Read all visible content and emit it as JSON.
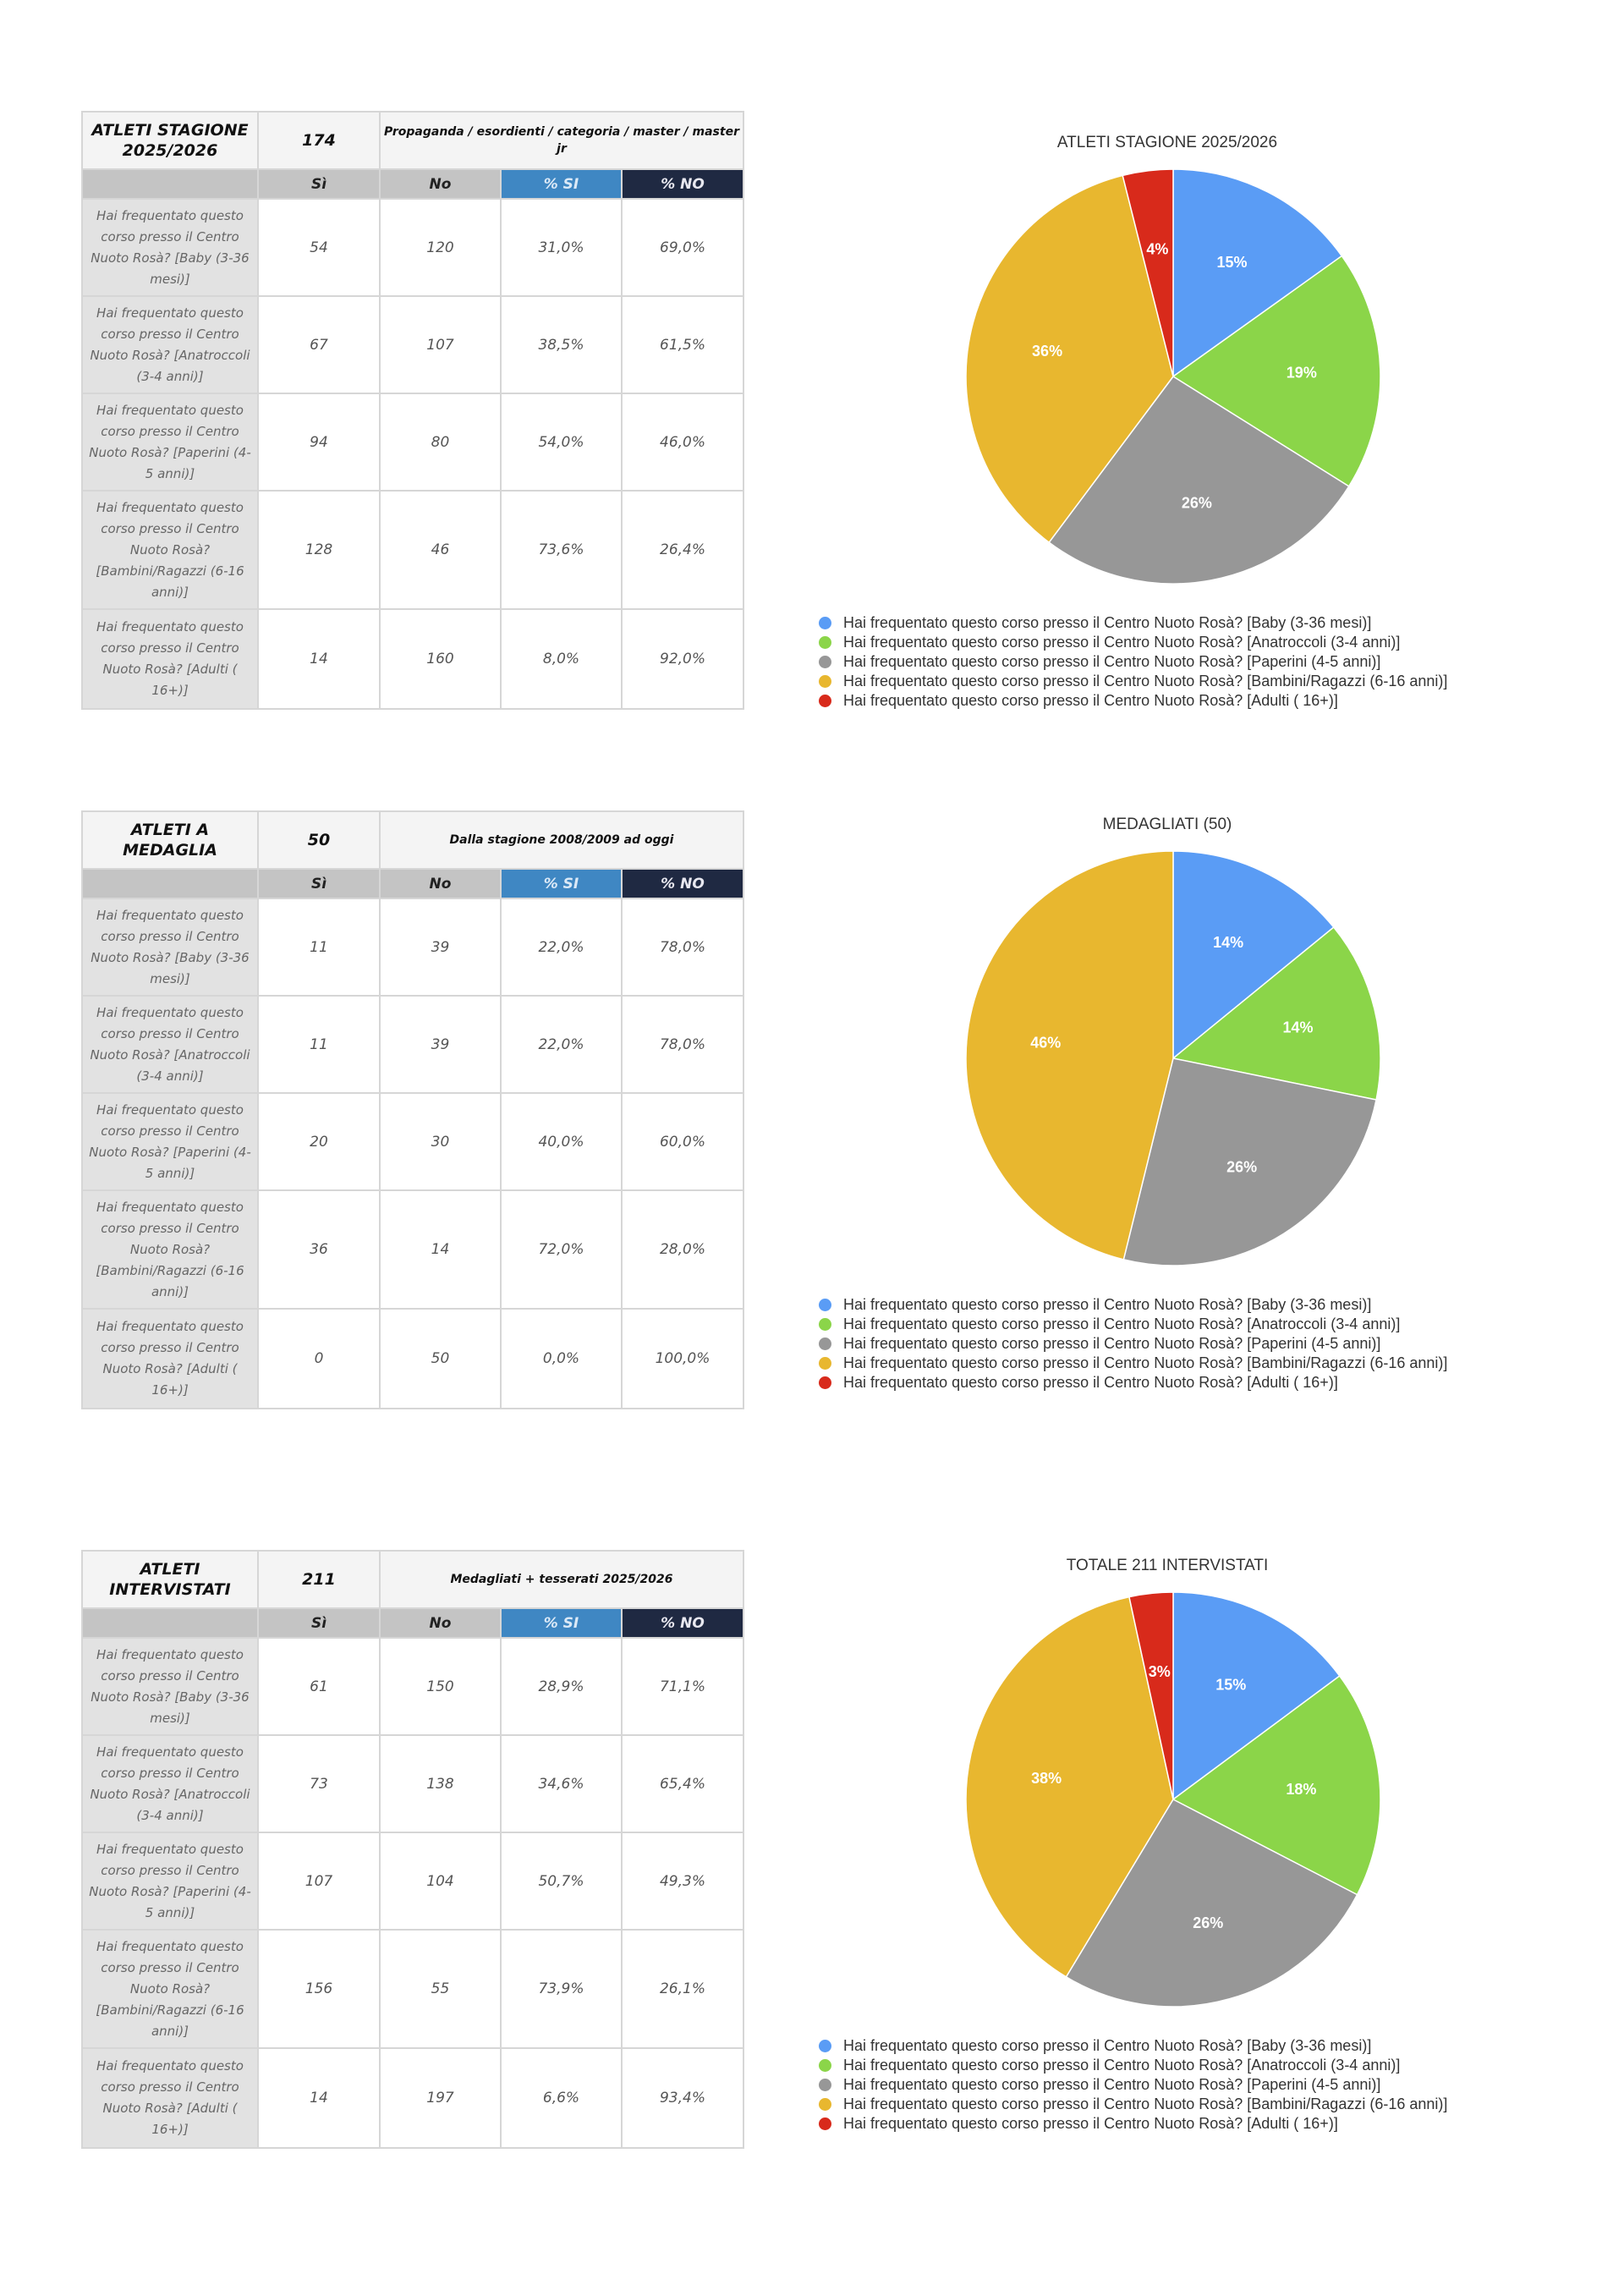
{
  "colors": {
    "si_header": "#3f87c3",
    "no_header": "#1f2942"
  },
  "tables": [
    {
      "title": "ATLETI STAGIONE 2025/2026",
      "total": "174",
      "description": "Propaganda / esordienti / categoria / master / master jr",
      "headers": [
        "",
        "Sì",
        "No",
        "% SI",
        "% NO"
      ],
      "rows": [
        {
          "label": "Hai frequentato questo corso presso il Centro Nuoto Rosà? [Baby (3-36 mesi)]",
          "si": "54",
          "no": "120",
          "pct_si": "31,0%",
          "pct_no": "69,0%"
        },
        {
          "label": "Hai frequentato questo corso presso il Centro Nuoto Rosà? [Anatroccoli (3-4 anni)]",
          "si": "67",
          "no": "107",
          "pct_si": "38,5%",
          "pct_no": "61,5%"
        },
        {
          "label": "Hai frequentato questo corso presso il Centro Nuoto Rosà? [Paperini (4-5 anni)]",
          "si": "94",
          "no": "80",
          "pct_si": "54,0%",
          "pct_no": "46,0%"
        },
        {
          "label": "Hai frequentato questo corso presso il Centro Nuoto Rosà? [Bambini/Ragazzi (6-16 anni)]",
          "si": "128",
          "no": "46",
          "pct_si": "73,6%",
          "pct_no": "26,4%"
        },
        {
          "label": "Hai frequentato questo corso presso il Centro Nuoto Rosà? [Adulti ( 16+)]",
          "si": "14",
          "no": "160",
          "pct_si": "8,0%",
          "pct_no": "92,0%"
        }
      ]
    },
    {
      "title": "ATLETI A MEDAGLIA",
      "total": "50",
      "description": "Dalla stagione 2008/2009 ad oggi",
      "headers": [
        "",
        "Sì",
        "No",
        "% SI",
        "% NO"
      ],
      "rows": [
        {
          "label": "Hai frequentato questo corso presso il Centro Nuoto Rosà? [Baby (3-36 mesi)]",
          "si": "11",
          "no": "39",
          "pct_si": "22,0%",
          "pct_no": "78,0%"
        },
        {
          "label": "Hai frequentato questo corso presso il Centro Nuoto Rosà? [Anatroccoli (3-4 anni)]",
          "si": "11",
          "no": "39",
          "pct_si": "22,0%",
          "pct_no": "78,0%"
        },
        {
          "label": "Hai frequentato questo corso presso il Centro Nuoto Rosà? [Paperini (4-5 anni)]",
          "si": "20",
          "no": "30",
          "pct_si": "40,0%",
          "pct_no": "60,0%"
        },
        {
          "label": "Hai frequentato questo corso presso il Centro Nuoto Rosà? [Bambini/Ragazzi (6-16 anni)]",
          "si": "36",
          "no": "14",
          "pct_si": "72,0%",
          "pct_no": "28,0%"
        },
        {
          "label": "Hai frequentato questo corso presso il Centro Nuoto Rosà? [Adulti ( 16+)]",
          "si": "0",
          "no": "50",
          "pct_si": "0,0%",
          "pct_no": "100,0%"
        }
      ]
    },
    {
      "title": "ATLETI INTERVISTATI",
      "total": "211",
      "description": "Medagliati + tesserati 2025/2026",
      "headers": [
        "",
        "Sì",
        "No",
        "% SI",
        "% NO"
      ],
      "rows": [
        {
          "label": "Hai frequentato questo corso presso il Centro Nuoto Rosà? [Baby (3-36 mesi)]",
          "si": "61",
          "no": "150",
          "pct_si": "28,9%",
          "pct_no": "71,1%"
        },
        {
          "label": "Hai frequentato questo corso presso il Centro Nuoto Rosà? [Anatroccoli (3-4 anni)]",
          "si": "73",
          "no": "138",
          "pct_si": "34,6%",
          "pct_no": "65,4%"
        },
        {
          "label": "Hai frequentato questo corso presso il Centro Nuoto Rosà? [Paperini (4-5 anni)]",
          "si": "107",
          "no": "104",
          "pct_si": "50,7%",
          "pct_no": "49,3%"
        },
        {
          "label": "Hai frequentato questo corso presso il Centro Nuoto Rosà? [Bambini/Ragazzi (6-16 anni)]",
          "si": "156",
          "no": "55",
          "pct_si": "73,9%",
          "pct_no": "26,1%"
        },
        {
          "label": "Hai frequentato questo corso presso il Centro Nuoto Rosà? [Adulti ( 16+)]",
          "si": "14",
          "no": "197",
          "pct_si": "6,6%",
          "pct_no": "93,4%"
        }
      ]
    }
  ],
  "chart_data": [
    {
      "type": "pie",
      "title": "ATLETI STAGIONE 2025/2026",
      "legend_position": "bottom",
      "categories": [
        "Hai frequentato questo corso presso il Centro Nuoto Rosà? [Baby (3-36 mesi)]",
        "Hai frequentato questo corso presso il Centro Nuoto Rosà? [Anatroccoli (3-4 anni)]",
        "Hai frequentato questo corso presso il Centro Nuoto Rosà? [Paperini (4-5 anni)]",
        "Hai frequentato questo corso presso il Centro Nuoto Rosà? [Bambini/Ragazzi (6-16 anni)]",
        "Hai frequentato questo corso presso il Centro Nuoto Rosà? [Adulti ( 16+)]"
      ],
      "values": [
        54,
        67,
        94,
        128,
        14
      ],
      "labels": [
        "15%",
        "19%",
        "26%",
        "36%",
        "4%"
      ],
      "colors": [
        "#5a9cf5",
        "#8bd549",
        "#979797",
        "#e8b72f",
        "#d82a1b"
      ]
    },
    {
      "type": "pie",
      "title": "MEDAGLIATI (50)",
      "legend_position": "bottom",
      "categories": [
        "Hai frequentato questo corso presso il Centro Nuoto Rosà? [Baby (3-36 mesi)]",
        "Hai frequentato questo corso presso il Centro Nuoto Rosà? [Anatroccoli (3-4 anni)]",
        "Hai frequentato questo corso presso il Centro Nuoto Rosà? [Paperini (4-5 anni)]",
        "Hai frequentato questo corso presso il Centro Nuoto Rosà? [Bambini/Ragazzi (6-16 anni)]",
        "Hai frequentato questo corso presso il Centro Nuoto Rosà? [Adulti ( 16+)]"
      ],
      "values": [
        11,
        11,
        20,
        36,
        0
      ],
      "labels": [
        "14%",
        "14%",
        "26%",
        "46%",
        ""
      ],
      "colors": [
        "#5a9cf5",
        "#8bd549",
        "#979797",
        "#e8b72f",
        "#d82a1b"
      ]
    },
    {
      "type": "pie",
      "title": "TOTALE 211 INTERVISTATI",
      "legend_position": "bottom",
      "categories": [
        "Hai frequentato questo corso presso il Centro Nuoto Rosà? [Baby (3-36 mesi)]",
        "Hai frequentato questo corso presso il Centro Nuoto Rosà? [Anatroccoli (3-4 anni)]",
        "Hai frequentato questo corso presso il Centro Nuoto Rosà? [Paperini (4-5 anni)]",
        "Hai frequentato questo corso presso il Centro Nuoto Rosà? [Bambini/Ragazzi (6-16 anni)]",
        "Hai frequentato questo corso presso il Centro Nuoto Rosà? [Adulti ( 16+)]"
      ],
      "values": [
        61,
        73,
        107,
        156,
        14
      ],
      "labels": [
        "15%",
        "18%",
        "26%",
        "38%",
        "3%"
      ],
      "colors": [
        "#5a9cf5",
        "#8bd549",
        "#979797",
        "#e8b72f",
        "#d82a1b"
      ]
    }
  ]
}
